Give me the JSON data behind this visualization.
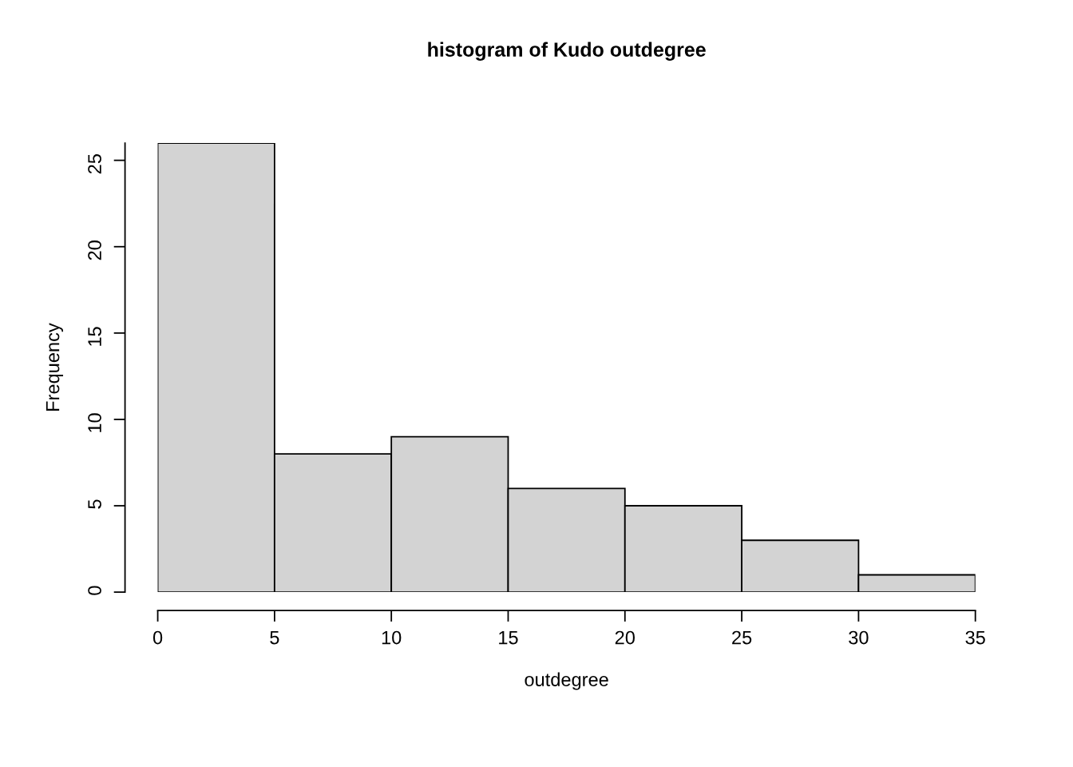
{
  "chart_data": {
    "type": "histogram",
    "title": "histogram of Kudo outdegree",
    "xlabel": "outdegree",
    "ylabel": "Frequency",
    "bins": [
      0,
      5,
      10,
      15,
      20,
      25,
      30,
      35
    ],
    "values": [
      26,
      8,
      9,
      6,
      5,
      3,
      1
    ],
    "color": "#d3d3d3",
    "xlim": [
      0,
      35
    ],
    "ylim": [
      0,
      26
    ],
    "xticks": [
      0,
      5,
      10,
      15,
      20,
      25,
      30,
      35
    ],
    "yticks": [
      0,
      5,
      10,
      15,
      20,
      25
    ],
    "grid": false
  }
}
